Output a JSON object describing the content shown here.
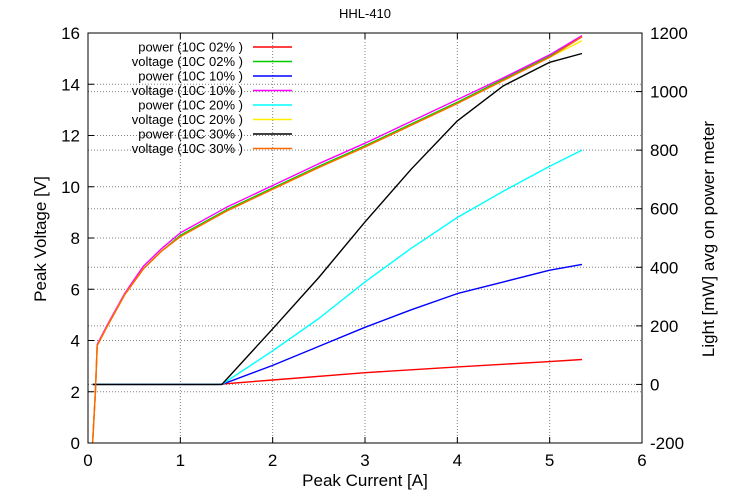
{
  "chart_data": {
    "type": "line",
    "title": "HHL-410",
    "xlabel": "Peak Current [A]",
    "ylabel": "Peak Voltage [V]",
    "y2label": "Light [mW] avg on power meter",
    "xlim": [
      0,
      6
    ],
    "ylim": [
      0,
      16
    ],
    "y2lim": [
      -200,
      1200
    ],
    "xticks": [
      "0",
      "1",
      "2",
      "3",
      "4",
      "5",
      "6"
    ],
    "yticks": [
      "0",
      "2",
      "4",
      "6",
      "8",
      "10",
      "12",
      "14",
      "16"
    ],
    "y2ticks": [
      "-200",
      "0",
      "200",
      "400",
      "600",
      "800",
      "1000",
      "1200"
    ],
    "grid": true,
    "legend_position": "top-left",
    "series": [
      {
        "name": "power (10C 02% )",
        "axis": "y2",
        "color": "#ff0000",
        "x": [
          0.05,
          1.4,
          2,
          3,
          4,
          5,
          5.35
        ],
        "y": [
          0,
          0,
          15,
          40,
          60,
          78,
          85
        ]
      },
      {
        "name": "voltage (10C 02% )",
        "axis": "y",
        "color": "#00cc00",
        "x": [
          0.05,
          0.08,
          0.1,
          0.2,
          0.4,
          0.6,
          0.8,
          1,
          1.5,
          2,
          2.5,
          3,
          3.5,
          4,
          4.5,
          5,
          5.35
        ],
        "y": [
          0,
          2,
          3.8,
          4.5,
          5.8,
          6.8,
          7.5,
          8.1,
          9.1,
          9.95,
          10.8,
          11.6,
          12.45,
          13.3,
          14.2,
          15.1,
          15.85
        ]
      },
      {
        "name": "power (10C 10% )",
        "axis": "y2",
        "color": "#0000ff",
        "x": [
          0.05,
          1.45,
          2,
          2.5,
          3,
          3.5,
          4,
          4.5,
          5,
          5.35
        ],
        "y": [
          0,
          0,
          65,
          130,
          195,
          255,
          310,
          350,
          390,
          410
        ]
      },
      {
        "name": "voltage (10C 10% )",
        "axis": "y",
        "color": "#ff00ff",
        "x": [
          0.05,
          0.08,
          0.1,
          0.2,
          0.4,
          0.6,
          0.8,
          1,
          1.5,
          2,
          2.5,
          3,
          3.5,
          4,
          4.5,
          5,
          5.35
        ],
        "y": [
          0,
          2,
          3.85,
          4.55,
          5.85,
          6.9,
          7.6,
          8.2,
          9.2,
          10.05,
          10.9,
          11.7,
          12.55,
          13.4,
          14.25,
          15.15,
          15.9
        ]
      },
      {
        "name": "power (10C 20% )",
        "axis": "y2",
        "color": "#00ffff",
        "x": [
          0.05,
          1.45,
          2,
          2.5,
          3,
          3.5,
          4,
          4.5,
          5,
          5.35
        ],
        "y": [
          0,
          0,
          115,
          225,
          350,
          465,
          570,
          660,
          745,
          800
        ]
      },
      {
        "name": "voltage (10C 20% )",
        "axis": "y",
        "color": "#ffee00",
        "x": [
          0.05,
          0.08,
          0.1,
          0.2,
          0.4,
          0.6,
          0.8,
          1,
          1.5,
          2,
          2.5,
          3,
          3.5,
          4,
          4.5,
          5,
          5.35
        ],
        "y": [
          0,
          2,
          3.8,
          4.5,
          5.8,
          6.8,
          7.5,
          8.05,
          9.05,
          9.9,
          10.75,
          11.55,
          12.4,
          13.25,
          14.15,
          15.05,
          15.7
        ]
      },
      {
        "name": "power (10C 30% )",
        "axis": "y2",
        "color": "#000000",
        "x": [
          0.05,
          1.45,
          2,
          2.5,
          3,
          3.5,
          4,
          4.5,
          5,
          5.35
        ],
        "y": [
          0,
          0,
          190,
          365,
          555,
          735,
          900,
          1020,
          1100,
          1130
        ]
      },
      {
        "name": "voltage (10C 30% )",
        "axis": "y",
        "color": "#ff6600",
        "x": [
          0.05,
          0.08,
          0.1,
          0.2,
          0.4,
          0.6,
          0.8,
          1,
          1.5,
          2,
          2.5,
          3,
          3.5,
          4,
          4.5,
          5,
          5.35
        ],
        "y": [
          0,
          2,
          3.8,
          4.5,
          5.8,
          6.8,
          7.5,
          8.05,
          9.05,
          9.9,
          10.75,
          11.55,
          12.4,
          13.25,
          14.15,
          15.05,
          15.85
        ]
      }
    ]
  }
}
